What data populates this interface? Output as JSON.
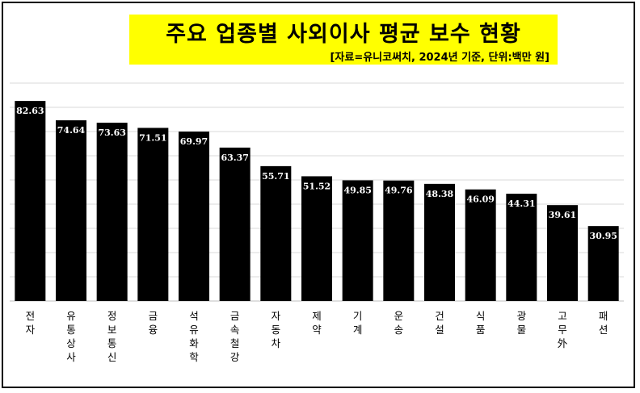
{
  "chart_data": {
    "type": "bar",
    "title": "주요 업종별 사외이사 평균 보수 현황",
    "subtitle": "[자료=유니코써치, 2024년 기준, 단위:백만 원]",
    "categories": [
      "전자",
      "유통상사",
      "정보통신",
      "금융",
      "석유화학",
      "금속철강",
      "자동차",
      "제약",
      "기계",
      "운송",
      "건설",
      "식품",
      "광물",
      "고무",
      "패션"
    ],
    "category_lines": [
      [
        "전",
        "자"
      ],
      [
        "유",
        "통",
        "상",
        "사"
      ],
      [
        "정",
        "보",
        "통",
        "신"
      ],
      [
        "금",
        "융"
      ],
      [
        "석",
        "유",
        "화",
        "학"
      ],
      [
        "금",
        "속",
        "철",
        "강"
      ],
      [
        "자",
        "동",
        "차"
      ],
      [
        "제",
        "약"
      ],
      [
        "기",
        "계"
      ],
      [
        "운",
        "송"
      ],
      [
        "건",
        "설"
      ],
      [
        "식",
        "품"
      ],
      [
        "광",
        "물"
      ],
      [
        "고",
        "무",
        "外"
      ],
      [
        "패",
        "션"
      ]
    ],
    "values": [
      82.63,
      74.64,
      73.63,
      71.51,
      69.97,
      63.37,
      55.71,
      51.52,
      49.85,
      49.76,
      48.38,
      46.09,
      44.31,
      39.61,
      30.95
    ],
    "value_labels": [
      "82.63",
      "74.64",
      "73.63",
      "71.51",
      "69.97",
      "63.37",
      "55.71",
      "51.52",
      "49.85",
      "49.76",
      "48.38",
      "46.09",
      "44.31",
      "39.61",
      "30.95"
    ],
    "ylim": [
      0,
      90
    ],
    "grid": true,
    "bar_color": "#000000",
    "highlight_color": "#ffff00"
  }
}
